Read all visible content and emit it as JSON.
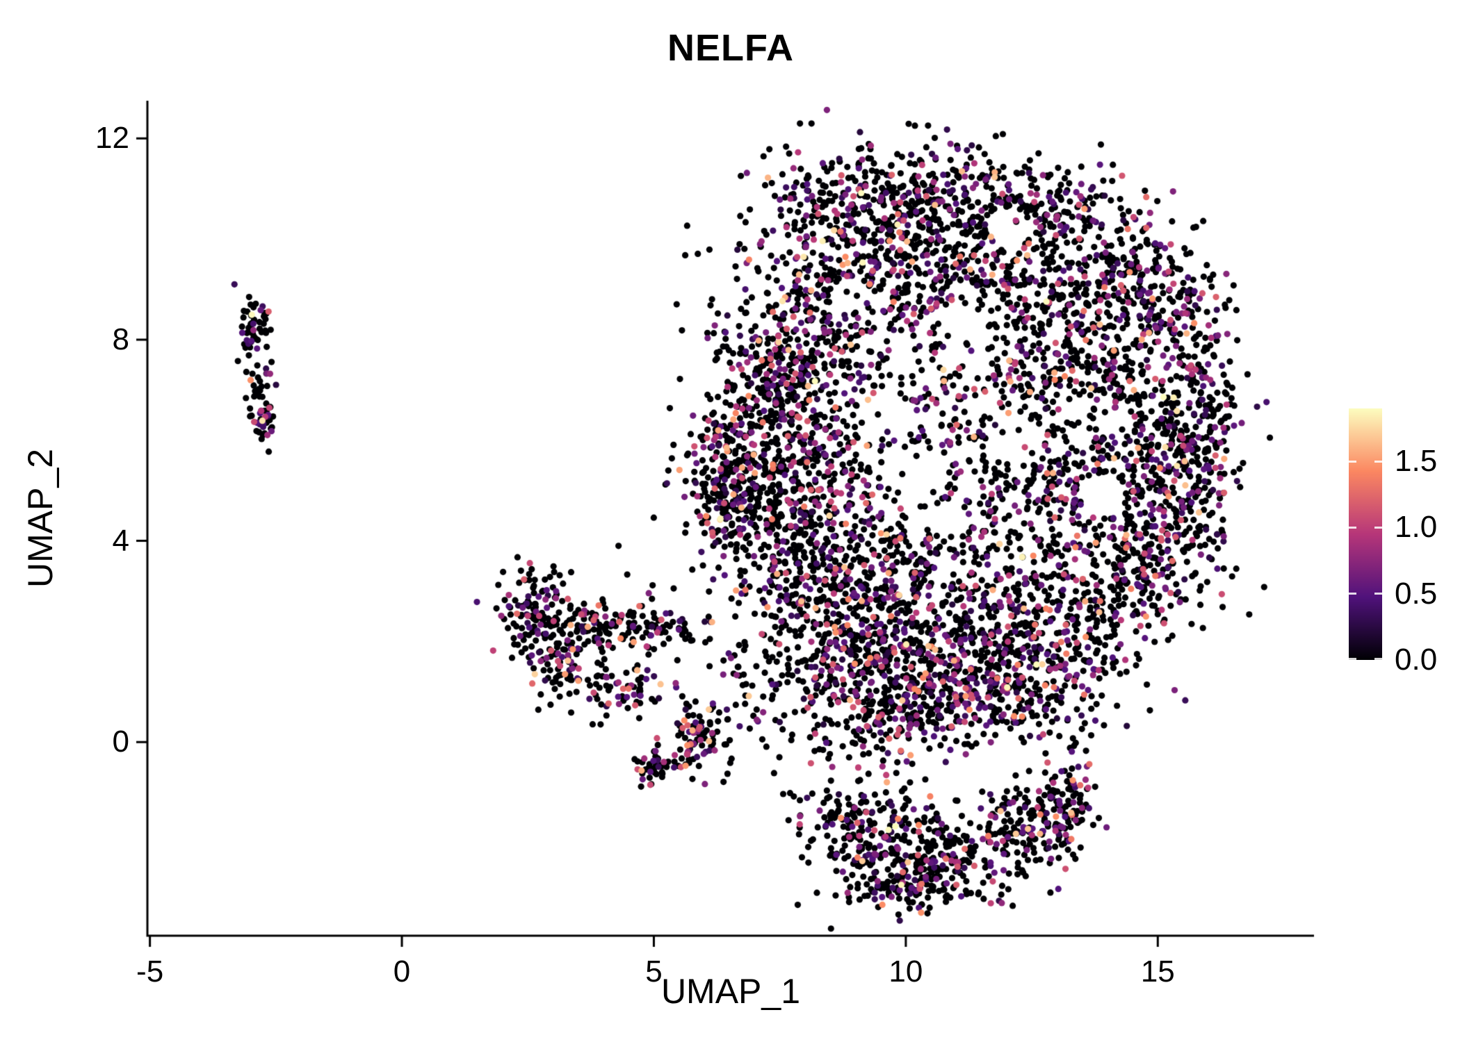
{
  "figure": {
    "title": "NELFA",
    "x_axis_label": "UMAP_1",
    "y_axis_label": "UMAP_2"
  },
  "chart_data": {
    "type": "scatter",
    "title": "NELFA",
    "xlabel": "UMAP_1",
    "ylabel": "UMAP_2",
    "xlim": [
      -5.05,
      18.1
    ],
    "ylim": [
      -3.85,
      12.75
    ],
    "grid": false,
    "background": "#ffffff",
    "axis_color": "#000000",
    "point_radius_px": 4.6,
    "x_ticks": [
      {
        "v": -5,
        "label": "-5"
      },
      {
        "v": 0,
        "label": "0"
      },
      {
        "v": 5,
        "label": "5"
      },
      {
        "v": 10,
        "label": "10"
      },
      {
        "v": 15,
        "label": "15"
      }
    ],
    "y_ticks": [
      {
        "v": 0,
        "label": "0"
      },
      {
        "v": 4,
        "label": "4"
      },
      {
        "v": 8,
        "label": "8"
      },
      {
        "v": 12,
        "label": "12"
      }
    ],
    "colormap": {
      "name": "magma",
      "stops": [
        {
          "pos": 0.0,
          "color": "#000004"
        },
        {
          "pos": 0.25,
          "color": "#50127b"
        },
        {
          "pos": 0.5,
          "color": "#b63679"
        },
        {
          "pos": 0.75,
          "color": "#fb8761"
        },
        {
          "pos": 1.0,
          "color": "#fcfdbf"
        }
      ]
    },
    "legend": {
      "position": "right",
      "value_min": 0.0,
      "value_max": 1.9,
      "ticks": [
        {
          "v": 1.5,
          "label": "1.5"
        },
        {
          "v": 1.0,
          "label": "1.0"
        },
        {
          "v": 0.5,
          "label": "0.5"
        },
        {
          "v": 0.0,
          "label": "0.0"
        }
      ]
    },
    "expression_mix": [
      {
        "weight": 0.7,
        "min": 0.0,
        "max": 0.0
      },
      {
        "weight": 0.18,
        "min": 0.2,
        "max": 0.7
      },
      {
        "weight": 0.08,
        "min": 0.7,
        "max": 1.2
      },
      {
        "weight": 0.035,
        "min": 1.2,
        "max": 1.7
      },
      {
        "weight": 0.005,
        "min": 1.7,
        "max": 1.9
      }
    ],
    "seed": 20240217,
    "clusters": [
      {
        "name": "main-blob",
        "cx": 8.1,
        "cy": 8.6,
        "sx": 0.9,
        "sy": 1.2,
        "n": 320
      },
      {
        "name": "main-blob",
        "cx": 9.8,
        "cy": 9.8,
        "sx": 1.0,
        "sy": 0.9,
        "n": 330
      },
      {
        "name": "main-blob",
        "cx": 11.6,
        "cy": 9.6,
        "sx": 1.1,
        "sy": 0.9,
        "n": 300
      },
      {
        "name": "main-blob",
        "cx": 13.5,
        "cy": 8.0,
        "sx": 0.9,
        "sy": 1.0,
        "n": 300
      },
      {
        "name": "main-blob",
        "cx": 14.7,
        "cy": 6.0,
        "sx": 0.8,
        "sy": 1.1,
        "n": 320
      },
      {
        "name": "main-blob",
        "cx": 14.6,
        "cy": 3.9,
        "sx": 0.9,
        "sy": 0.9,
        "n": 260
      },
      {
        "name": "main-blob",
        "cx": 13.2,
        "cy": 2.4,
        "sx": 1.1,
        "sy": 0.8,
        "n": 300
      },
      {
        "name": "main-blob",
        "cx": 11.2,
        "cy": 1.6,
        "sx": 1.1,
        "sy": 0.7,
        "n": 320
      },
      {
        "name": "main-blob",
        "cx": 9.4,
        "cy": 1.7,
        "sx": 0.9,
        "sy": 0.9,
        "n": 340
      },
      {
        "name": "main-blob",
        "cx": 8.3,
        "cy": 3.3,
        "sx": 0.8,
        "sy": 1.0,
        "n": 340
      },
      {
        "name": "main-blob",
        "cx": 7.3,
        "cy": 5.0,
        "sx": 0.7,
        "sy": 1.0,
        "n": 340
      },
      {
        "name": "main-blob",
        "cx": 7.6,
        "cy": 7.0,
        "sx": 0.7,
        "sy": 0.9,
        "n": 280
      },
      {
        "name": "main-blob",
        "cx": 9.6,
        "cy": 5.8,
        "sx": 1.2,
        "sy": 1.2,
        "n": 200
      },
      {
        "name": "main-blob",
        "cx": 11.6,
        "cy": 6.6,
        "sx": 1.2,
        "sy": 1.1,
        "n": 210
      },
      {
        "name": "main-blob",
        "cx": 12.6,
        "cy": 4.9,
        "sx": 1.0,
        "sy": 1.0,
        "n": 220
      },
      {
        "name": "main-blob",
        "cx": 10.5,
        "cy": 3.4,
        "sx": 1.0,
        "sy": 0.8,
        "n": 230
      },
      {
        "name": "main-blob",
        "cx": 9.1,
        "cy": 10.9,
        "sx": 0.9,
        "sy": 0.45,
        "n": 140
      },
      {
        "name": "main-blob",
        "cx": 11.3,
        "cy": 11.0,
        "sx": 0.8,
        "sy": 0.45,
        "n": 110
      },
      {
        "name": "main-blob",
        "cx": 6.4,
        "cy": 5.3,
        "sx": 0.35,
        "sy": 0.7,
        "n": 160
      },
      {
        "name": "main-blob",
        "cx": 15.8,
        "cy": 6.9,
        "sx": 0.4,
        "sy": 0.9,
        "n": 130
      },
      {
        "name": "main-blob",
        "cx": 15.3,
        "cy": 8.6,
        "sx": 0.5,
        "sy": 0.6,
        "n": 110
      },
      {
        "name": "main-blob",
        "cx": 13.0,
        "cy": 10.6,
        "sx": 0.7,
        "sy": 0.5,
        "n": 120
      },
      {
        "name": "main-blob",
        "cx": 14.5,
        "cy": 9.4,
        "sx": 0.6,
        "sy": 0.6,
        "n": 120
      },
      {
        "name": "main-blob",
        "cx": 15.6,
        "cy": 5.0,
        "sx": 0.4,
        "sy": 0.7,
        "n": 110
      },
      {
        "name": "main-blob",
        "cx": 10.3,
        "cy": 0.6,
        "sx": 1.0,
        "sy": 0.45,
        "n": 180
      },
      {
        "name": "main-blob",
        "cx": 12.6,
        "cy": 0.9,
        "sx": 0.7,
        "sy": 0.5,
        "n": 130
      },
      {
        "name": "bottom-lobe",
        "cx": 9.2,
        "cy": -1.7,
        "sx": 0.7,
        "sy": 0.55,
        "n": 190
      },
      {
        "name": "bottom-lobe",
        "cx": 10.8,
        "cy": -2.3,
        "sx": 0.9,
        "sy": 0.45,
        "n": 220
      },
      {
        "name": "bottom-lobe",
        "cx": 12.4,
        "cy": -1.7,
        "sx": 0.6,
        "sy": 0.5,
        "n": 150
      },
      {
        "name": "bottom-lobe",
        "cx": 13.2,
        "cy": -1.2,
        "sx": 0.35,
        "sy": 0.4,
        "n": 80
      },
      {
        "name": "bottom-lobe",
        "cx": 9.9,
        "cy": -2.9,
        "sx": 0.7,
        "sy": 0.25,
        "n": 90
      },
      {
        "name": "mid-cluster",
        "cx": 2.65,
        "cy": 2.6,
        "sx": 0.3,
        "sy": 0.5,
        "n": 110
      },
      {
        "name": "mid-cluster",
        "cx": 3.1,
        "cy": 1.6,
        "sx": 0.35,
        "sy": 0.5,
        "n": 100
      },
      {
        "name": "mid-cluster",
        "cx": 3.9,
        "cy": 2.3,
        "sx": 0.45,
        "sy": 0.25,
        "n": 80
      },
      {
        "name": "mid-cluster",
        "cx": 5.0,
        "cy": 2.25,
        "sx": 0.5,
        "sy": 0.2,
        "n": 60
      },
      {
        "name": "mid-cluster",
        "cx": 4.4,
        "cy": 1.05,
        "sx": 0.4,
        "sy": 0.3,
        "n": 60
      },
      {
        "name": "mid-cluster",
        "cx": 5.9,
        "cy": 0.05,
        "sx": 0.3,
        "sy": 0.35,
        "n": 90
      },
      {
        "name": "mid-cluster",
        "cx": 5.0,
        "cy": -0.5,
        "sx": 0.22,
        "sy": 0.18,
        "n": 40
      },
      {
        "name": "left-cluster",
        "cx": -2.95,
        "cy": 8.2,
        "sx": 0.16,
        "sy": 0.4,
        "n": 55
      },
      {
        "name": "left-cluster",
        "cx": -2.82,
        "cy": 6.9,
        "sx": 0.13,
        "sy": 0.35,
        "n": 30
      },
      {
        "name": "left-cluster",
        "cx": -2.75,
        "cy": 6.35,
        "sx": 0.12,
        "sy": 0.2,
        "n": 25
      },
      {
        "name": "sparse-bridge",
        "cx": 7.0,
        "cy": 1.2,
        "sx": 0.7,
        "sy": 0.8,
        "n": 70
      },
      {
        "name": "sparse-bridge",
        "cx": 6.2,
        "cy": 3.2,
        "sx": 1.0,
        "sy": 1.2,
        "n": 25
      }
    ],
    "voids": [
      {
        "cx": 10.3,
        "cy": 5.3,
        "r": 0.55
      },
      {
        "cx": 9.6,
        "cy": 6.5,
        "r": 0.45
      },
      {
        "cx": 12.2,
        "cy": 6.0,
        "r": 0.5
      },
      {
        "cx": 13.9,
        "cy": 4.9,
        "r": 0.45
      },
      {
        "cx": 11.2,
        "cy": 8.3,
        "r": 0.4
      },
      {
        "cx": 8.9,
        "cy": 8.9,
        "r": 0.35
      },
      {
        "cx": 13.3,
        "cy": 6.7,
        "r": 0.35
      },
      {
        "cx": 10.9,
        "cy": 4.4,
        "r": 0.35
      },
      {
        "cx": 12.1,
        "cy": 10.2,
        "r": 0.4
      },
      {
        "cx": 14.2,
        "cy": 6.3,
        "r": 0.35
      }
    ],
    "void_keep_fraction": 0.12
  }
}
